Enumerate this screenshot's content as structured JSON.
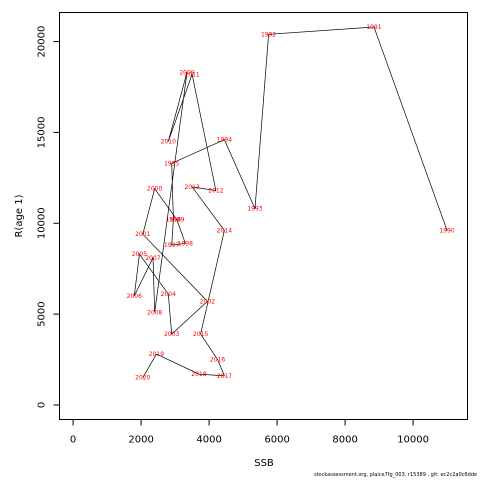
{
  "chart_data": {
    "type": "line",
    "xlabel": "SSB",
    "ylabel": "R(age 1)",
    "xlim": [
      -400,
      11600
    ],
    "ylim": [
      -800,
      21600
    ],
    "xticks": [
      0,
      2000,
      4000,
      6000,
      8000,
      10000
    ],
    "yticks": [
      0,
      5000,
      10000,
      15000,
      20000
    ],
    "grid": false,
    "line_color": "#000000",
    "label_color": "#ff0000",
    "points": [
      {
        "year": "1990",
        "x": 11000,
        "y": 9600
      },
      {
        "year": "1991",
        "x": 8850,
        "y": 20800
      },
      {
        "year": "1992",
        "x": 5750,
        "y": 20400
      },
      {
        "year": "1993",
        "x": 5350,
        "y": 10800
      },
      {
        "year": "1994",
        "x": 4450,
        "y": 14600
      },
      {
        "year": "1995",
        "x": 2900,
        "y": 13300
      },
      {
        "year": "1996",
        "x": 2950,
        "y": 10200
      },
      {
        "year": "1997",
        "x": 2900,
        "y": 8800
      },
      {
        "year": "1998",
        "x": 3300,
        "y": 8900
      },
      {
        "year": "1999",
        "x": 3050,
        "y": 10200
      },
      {
        "year": "2000",
        "x": 2400,
        "y": 11900
      },
      {
        "year": "2001",
        "x": 2050,
        "y": 9400
      },
      {
        "year": "2002",
        "x": 3950,
        "y": 5700
      },
      {
        "year": "2003",
        "x": 2900,
        "y": 3900
      },
      {
        "year": "2004",
        "x": 2800,
        "y": 6100
      },
      {
        "year": "2005",
        "x": 1950,
        "y": 8300
      },
      {
        "year": "2006",
        "x": 1800,
        "y": 6000
      },
      {
        "year": "2007",
        "x": 2350,
        "y": 8100
      },
      {
        "year": "2008",
        "x": 2400,
        "y": 5100
      },
      {
        "year": "2009",
        "x": 3350,
        "y": 18300
      },
      {
        "year": "2010",
        "x": 2800,
        "y": 14500
      },
      {
        "year": "2011",
        "x": 3500,
        "y": 18200
      },
      {
        "year": "2012",
        "x": 4200,
        "y": 11800
      },
      {
        "year": "2013",
        "x": 3500,
        "y": 12000
      },
      {
        "year": "2014",
        "x": 4450,
        "y": 9600
      },
      {
        "year": "2015",
        "x": 3750,
        "y": 3900
      },
      {
        "year": "2016",
        "x": 4250,
        "y": 2500
      },
      {
        "year": "2017",
        "x": 4450,
        "y": 1600
      },
      {
        "year": "2018",
        "x": 3700,
        "y": 1700
      },
      {
        "year": "2019",
        "x": 2450,
        "y": 2800
      },
      {
        "year": "2020",
        "x": 2050,
        "y": 1500
      }
    ]
  },
  "footer_text": "stockassessment.org,  plaice7fg_003,  r15389 ,  git:  ec2c2a0c6dde"
}
